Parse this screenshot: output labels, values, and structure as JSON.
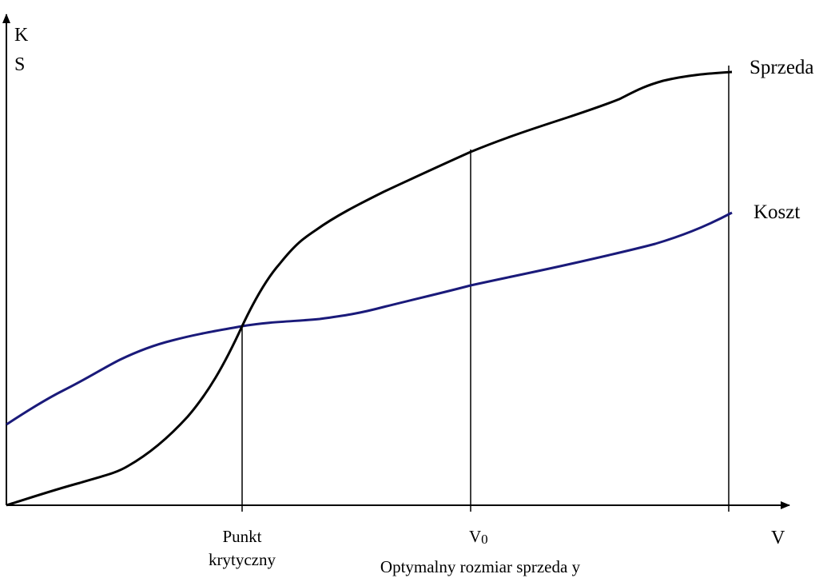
{
  "axis_labels": {
    "y_top": "K",
    "y_bottom": "S",
    "x": "V"
  },
  "curve_labels": {
    "sales": "Sprzeda",
    "cost": "Koszt"
  },
  "markers": {
    "critical_line1": "Punkt",
    "critical_line2": "krytyczny",
    "optimal_v": "V",
    "optimal_sub": "0",
    "optimal_caption": "Optymalny rozmiar sprzeda  y"
  },
  "colors": {
    "axis": "#000000",
    "sales_curve": "#000000",
    "cost_curve": "#1a1a7a"
  }
}
